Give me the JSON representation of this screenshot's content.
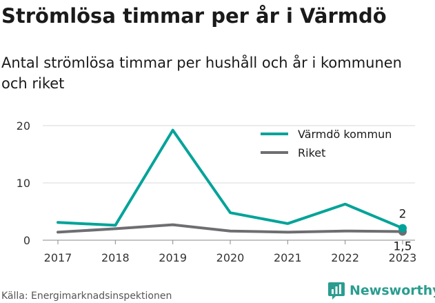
{
  "title": "Strömlösa timmar per år i Värmdö",
  "subtitle": "Antal strömlösa timmar per hushåll och år i kommunen och riket",
  "source": "Källa: Energimarknadsinspektionen",
  "brand": {
    "name": "Newsworthy",
    "icon": "bar-chart-logo-icon",
    "color": "#2a9d8f"
  },
  "chart_data": {
    "type": "line",
    "x": [
      "2017",
      "2018",
      "2019",
      "2020",
      "2021",
      "2022",
      "2023"
    ],
    "ylim": [
      0,
      20
    ],
    "yticks": [
      "0",
      "10",
      "20"
    ],
    "grid": true,
    "legend_position": "top-right",
    "series": [
      {
        "name": "Värmdö kommun",
        "color": "#00a399",
        "values": [
          3.1,
          2.6,
          19.2,
          4.8,
          2.9,
          6.3,
          2.1
        ],
        "end_label": "2"
      },
      {
        "name": "Riket",
        "color": "#6e6e72",
        "values": [
          1.4,
          2.0,
          2.7,
          1.6,
          1.4,
          1.6,
          1.5
        ],
        "end_label": "1,5"
      }
    ]
  }
}
